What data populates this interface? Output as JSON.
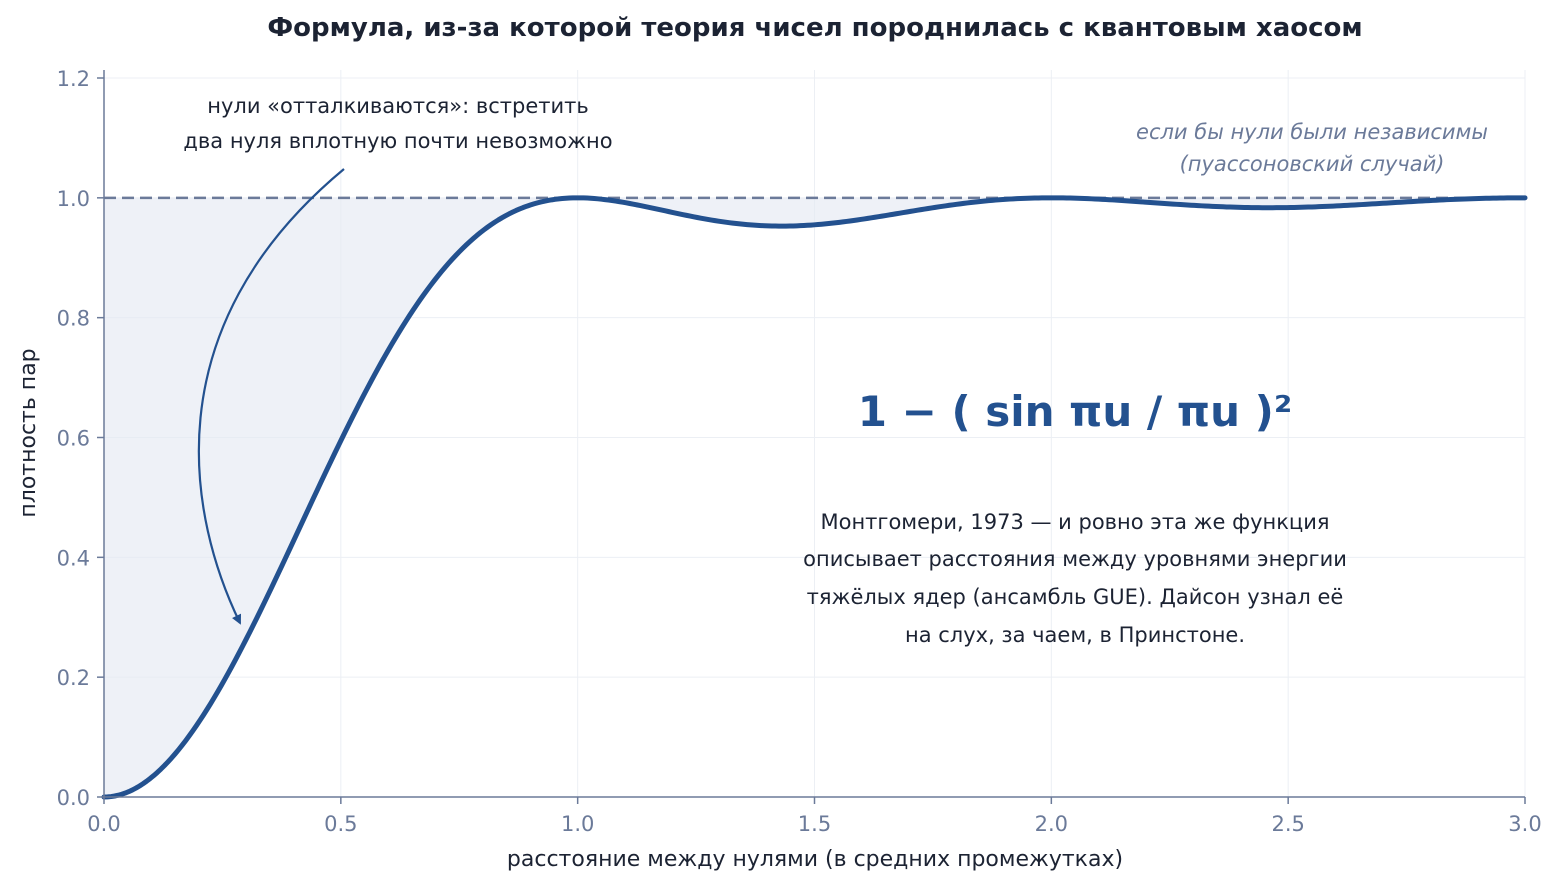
{
  "chart_data": {
    "type": "line",
    "title": "Формула, из-за которой теория чисел породнилась с квантовым хаосом",
    "xlabel": "расстояние между нулями (в средних промежутках)",
    "ylabel": "плотность пар",
    "xlim": [
      0,
      3.0
    ],
    "ylim": [
      0,
      1.22
    ],
    "x_ticks": [
      "0.0",
      "0.5",
      "1.0",
      "1.5",
      "2.0",
      "2.5",
      "3.0"
    ],
    "y_ticks": [
      "0.0",
      "0.2",
      "0.4",
      "0.6",
      "0.8",
      "1.0",
      "1.2"
    ],
    "grid": true,
    "series": [
      {
        "formula": "1 - (sin(pi*u)/(pi*u))^2",
        "x": [
          0.0,
          0.1,
          0.2,
          0.3,
          0.4,
          0.5,
          0.6,
          0.7,
          0.8,
          0.9,
          1.0,
          1.1,
          1.2,
          1.3,
          1.4,
          1.5,
          1.6,
          1.7,
          1.8,
          1.9,
          2.0,
          2.1,
          2.2,
          2.3,
          2.4,
          2.5,
          2.6,
          2.7,
          2.8,
          2.9,
          3.0
        ],
        "y": [
          0.0,
          0.032,
          0.123,
          0.258,
          0.418,
          0.595,
          0.748,
          0.867,
          0.946,
          0.988,
          1.0,
          0.992,
          0.975,
          0.961,
          0.954,
          0.955,
          0.965,
          0.977,
          0.989,
          0.997,
          1.0,
          0.998,
          0.993,
          0.988,
          0.985,
          0.984,
          0.987,
          0.991,
          0.995,
          0.999,
          1.0
        ],
        "color": "#23518f"
      }
    ],
    "reference_line": {
      "y": 1.0,
      "style": "dashed",
      "color": "#6b7a99"
    },
    "shaded_region": "between y=1.0 and curve",
    "formula_label": "1 − ( sin πu / πu )²",
    "annotations": {
      "repulsion": [
        "нули «отталкиваются»: встретить",
        "два нуля вплотную почти невозможно"
      ],
      "poisson": [
        "если бы нули были независимы",
        "(пуассоновский случай)"
      ],
      "note": [
        "Монтгомери, 1973  —  и ровно эта же функция",
        "описывает расстояния между уровнями энергии",
        "тяжёлых ядер (ансамбль GUE). Дайсон узнал её",
        "на слух, за чаем, в Принстоне."
      ]
    }
  }
}
